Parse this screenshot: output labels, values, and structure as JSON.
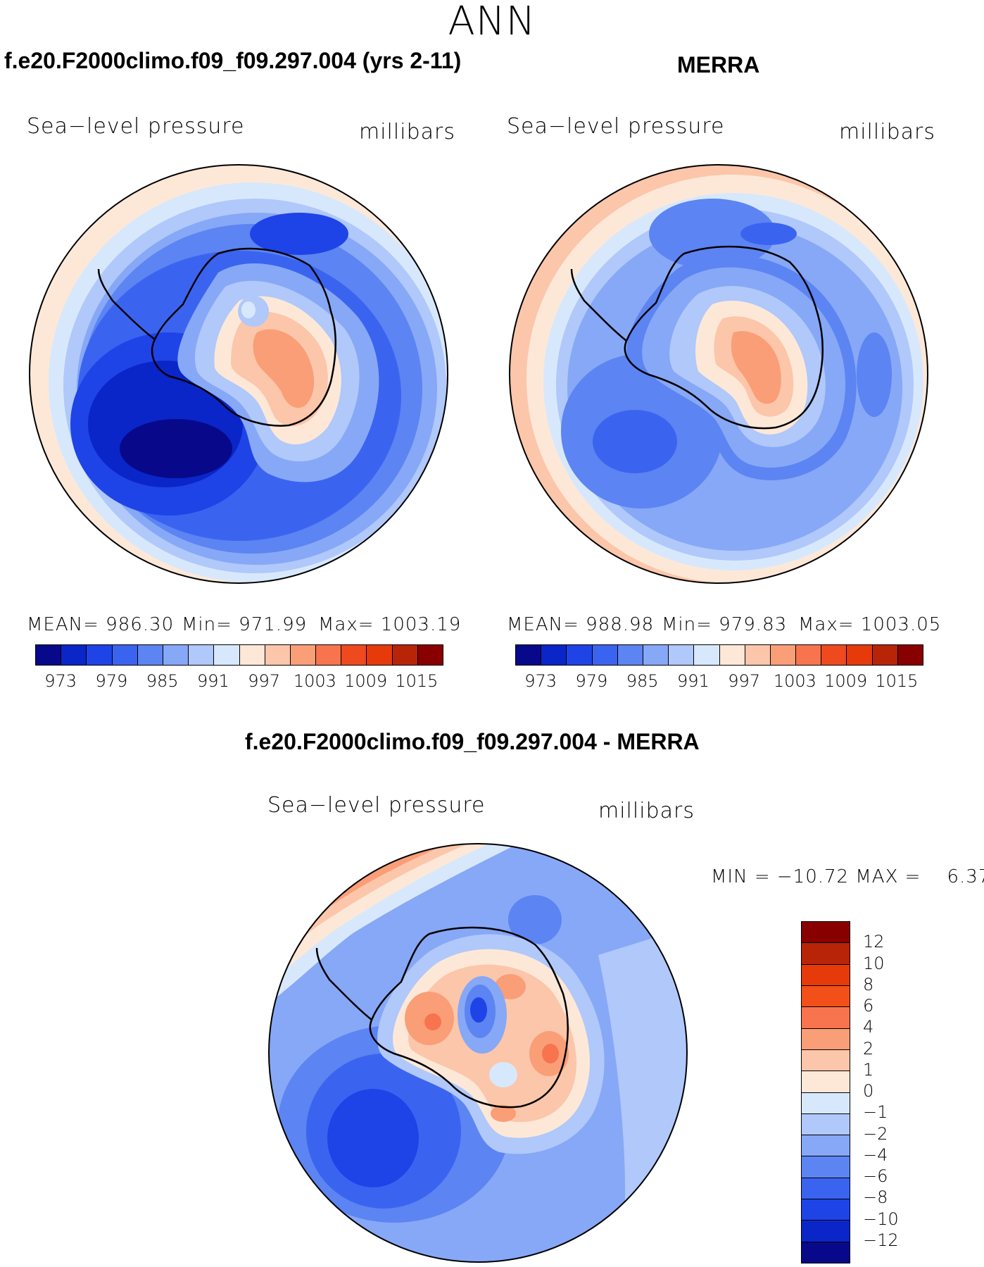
{
  "title": "ANN",
  "panels": [
    {
      "case_title": "f.e20.F2000climo.f09_f09.297.004 (yrs 2-11)",
      "variable": "Sea−level pressure",
      "units": "millibars",
      "stats": {
        "mean": "MEAN= 986.30",
        "min": "Min= 971.99",
        "max": "Max= 1003.19"
      },
      "colorbar_labels": [
        "973",
        "979",
        "985",
        "991",
        "997",
        "1003",
        "1009",
        "1015"
      ]
    },
    {
      "case_title": "MERRA",
      "variable": "Sea−level pressure",
      "units": "millibars",
      "stats": {
        "mean": "MEAN= 988.98",
        "min": "Min= 979.83",
        "max": "Max= 1003.05"
      },
      "colorbar_labels": [
        "973",
        "979",
        "985",
        "991",
        "997",
        "1003",
        "1009",
        "1015"
      ]
    }
  ],
  "diff_panel": {
    "case_title": "f.e20.F2000climo.f09_f09.297.004 - MERRA",
    "variable": "Sea−level pressure",
    "units": "millibars",
    "minmax": "MIN = −10.72 MAX =    6.37",
    "colorbar_labels": [
      "12",
      "10",
      "8",
      "6",
      "4",
      "2",
      "1",
      "0",
      "−1",
      "−2",
      "−4",
      "−6",
      "−8",
      "−10",
      "−12"
    ]
  },
  "palette_abs": [
    "#08088a",
    "#0a26c8",
    "#1e44e8",
    "#3a64f0",
    "#5c84f2",
    "#86a8f6",
    "#b0c8fa",
    "#d8e8fc",
    "#fde8d8",
    "#fcc6aa",
    "#fa9e78",
    "#f8744e",
    "#ee4a1e",
    "#e63a0a",
    "#b82408",
    "#880000"
  ],
  "palette_diff": [
    "#880000",
    "#b82408",
    "#e63a0a",
    "#f25018",
    "#f8744e",
    "#fa9e78",
    "#fcc6aa",
    "#fde8d8",
    "#d8e8fc",
    "#b0c8fa",
    "#86a8f6",
    "#5c84f2",
    "#3a64f0",
    "#1e44e8",
    "#0a26c8",
    "#08088a"
  ]
}
